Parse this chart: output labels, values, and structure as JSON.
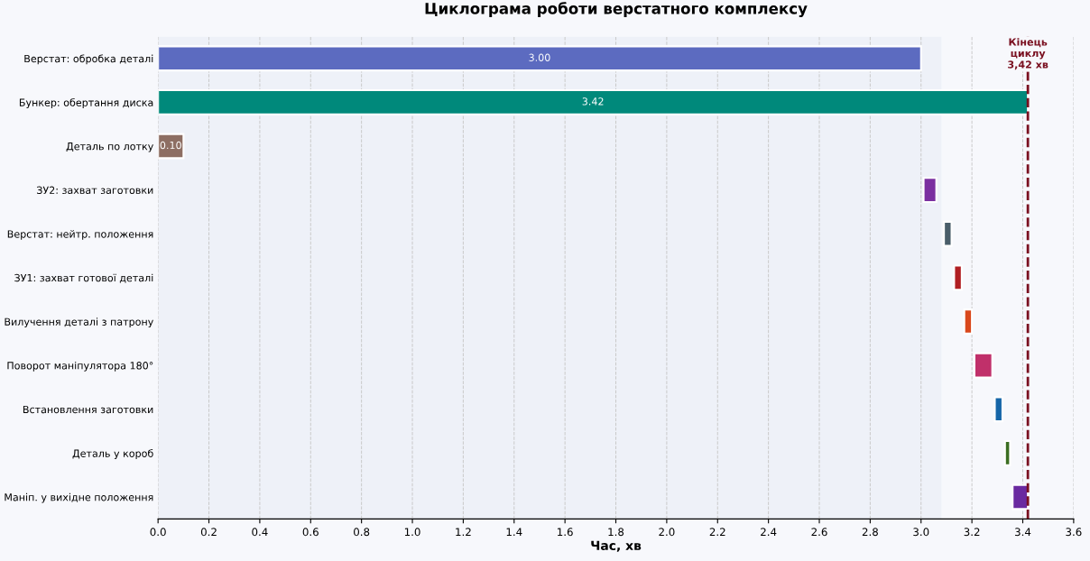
{
  "chart_data": {
    "type": "bar",
    "orientation": "horizontal",
    "title": "Циклограма роботи верстатного комплексу",
    "xlabel": "Час, хв",
    "categories": [
      "Верстат: обробка деталі",
      "Бункер: обертання диска",
      "Деталь по лотку",
      "ЗУ2: захват заготовки",
      "Верстат: нейтр. положення",
      "ЗУ1: захват готової деталі",
      "Вилучення деталі з патрону",
      "Поворот маніпулятора 180°",
      "Встановлення заготовки",
      "Деталь у короб",
      "Маніп. у вихідне положення"
    ],
    "base": [
      0,
      0,
      0,
      3.01,
      3.09,
      3.13,
      3.17,
      3.21,
      3.29,
      3.33,
      3.36
    ],
    "values": [
      3.0,
      3.42,
      0.1,
      0.05,
      0.03,
      0.03,
      0.03,
      0.07,
      0.03,
      0.02,
      0.06
    ],
    "value_labels": [
      "3.00",
      "3.42",
      "0.10",
      null,
      null,
      null,
      null,
      null,
      null,
      null,
      null
    ],
    "colors": [
      "#5c6bc0",
      "#00897b",
      "#8d6e63",
      "#7b2fa0",
      "#4a5e6a",
      "#b01e22",
      "#d9481c",
      "#c0306a",
      "#1565a8",
      "#3b6e22",
      "#6a2aa0"
    ],
    "xlim": [
      0,
      3.6
    ],
    "xticks": [
      {
        "value": 0,
        "label": "0.0"
      },
      0.2,
      0.4,
      0.6,
      0.8,
      {
        "value": 1,
        "label": "1.0"
      },
      1.2,
      1.4,
      1.6,
      1.8,
      {
        "value": 2,
        "label": "2.0"
      },
      2.2,
      2.4,
      2.6,
      2.8,
      {
        "value": 3,
        "label": "3.0"
      },
      3.2,
      3.4,
      3.6
    ],
    "ref_lines": [
      {
        "axis": "x",
        "value": 3.42,
        "label": "Кінець\nциклу\n3,42 хв",
        "color": "#7a1020",
        "line_style": "dashed"
      }
    ],
    "bands": [
      {
        "axis": "x",
        "from": 0,
        "to": 3.08,
        "color": "#eef1f8"
      }
    ],
    "grid": "x"
  }
}
